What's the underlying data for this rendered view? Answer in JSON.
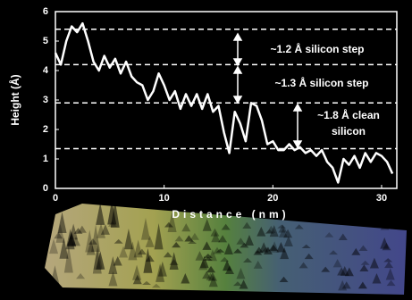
{
  "chart_data": {
    "type": "line",
    "x_label": "Distance (nm)",
    "y_label": "Height (Å)",
    "xlim": [
      0,
      31.4
    ],
    "xticks": [
      0,
      10,
      20,
      30
    ],
    "ylim": [
      0,
      6
    ],
    "yticks": [
      0,
      1,
      2,
      3,
      4,
      5,
      6
    ],
    "reference_lines": [
      5.4,
      4.2,
      2.9,
      1.35
    ],
    "annotations": [
      "~1.2 Å silicon step",
      "~1.3 Å silicon step",
      "~1.8 Å clean",
      "silicon"
    ],
    "series": [
      {
        "color": "#ffffff",
        "x": [
          0,
          0.5,
          1,
          1.5,
          2,
          2.5,
          3,
          3.5,
          4,
          4.5,
          5,
          5.5,
          6,
          6.5,
          7,
          7.5,
          8,
          8.5,
          9,
          9.5,
          10,
          10.5,
          11,
          11.5,
          12,
          12.5,
          13,
          13.5,
          14,
          14.5,
          15,
          15.5,
          16,
          16.5,
          17,
          17.5,
          18,
          18.5,
          19,
          19.5,
          20,
          20.5,
          21,
          21.5,
          22,
          22.5,
          23,
          23.5,
          24,
          24.5,
          25,
          25.5,
          26,
          26.5,
          27,
          27.5,
          28,
          28.5,
          29,
          29.5,
          30,
          30.5,
          31
        ],
        "values": [
          4.6,
          4.2,
          5.0,
          5.5,
          5.3,
          5.6,
          5.0,
          4.3,
          4.0,
          4.5,
          4.1,
          4.4,
          3.9,
          4.3,
          3.8,
          3.6,
          3.5,
          3.0,
          3.3,
          3.9,
          3.5,
          3.0,
          3.3,
          2.7,
          3.2,
          2.8,
          3.2,
          2.7,
          3.2,
          2.6,
          2.8,
          1.9,
          1.2,
          2.6,
          2.2,
          1.6,
          2.9,
          2.8,
          2.3,
          1.5,
          1.6,
          1.3,
          1.3,
          1.5,
          1.3,
          1.4,
          1.2,
          1.3,
          1.1,
          1.3,
          0.9,
          0.7,
          0.2,
          1.0,
          0.8,
          1.1,
          0.7,
          1.2,
          0.9,
          1.2,
          1.1,
          0.9,
          0.5
        ]
      }
    ]
  }
}
